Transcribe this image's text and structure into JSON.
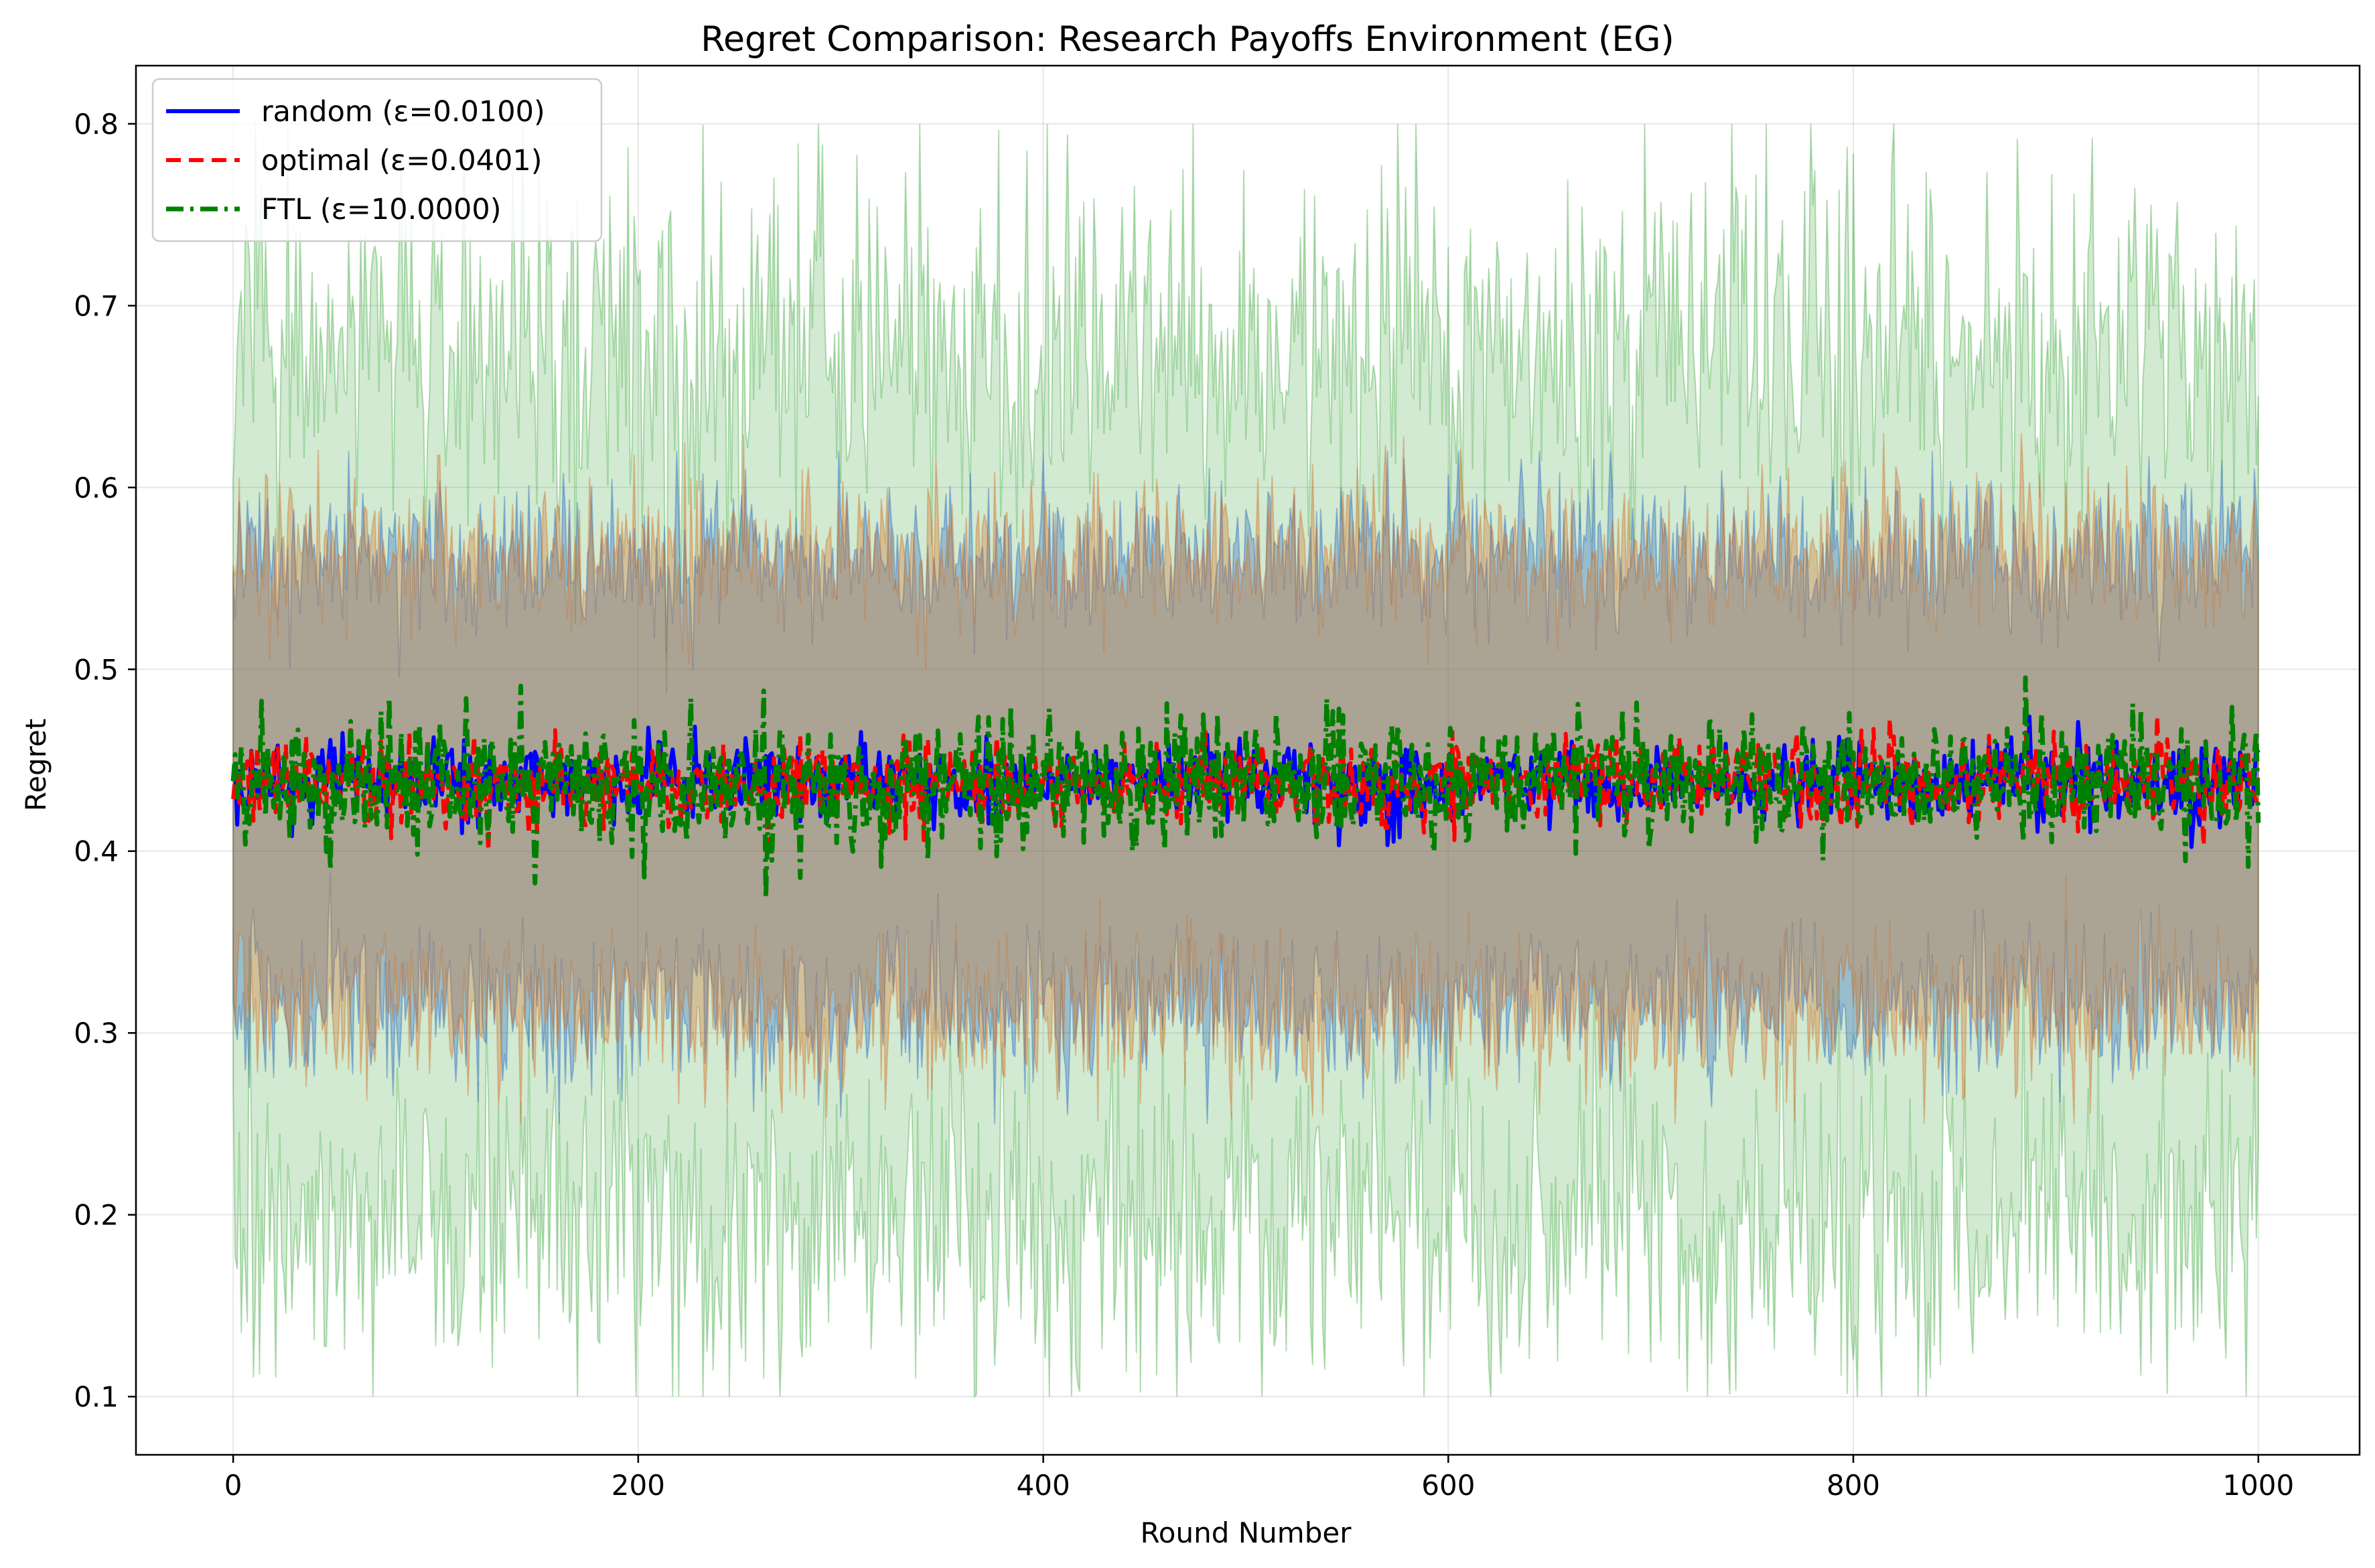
{
  "chart_data": {
    "type": "line",
    "title": "Regret Comparison: Research Payoffs Environment (EG)",
    "xlabel": "Round Number",
    "ylabel": "Regret",
    "xlim": [
      -48,
      1050
    ],
    "ylim": [
      0.068,
      0.832
    ],
    "xticks": [
      0,
      200,
      400,
      600,
      800,
      1000
    ],
    "yticks": [
      0.1,
      0.2,
      0.3,
      0.4,
      0.5,
      0.6,
      0.7,
      0.8
    ],
    "grid": true,
    "legend_position": "top-left",
    "n_rounds": 1000,
    "series": [
      {
        "name": "random (ε=0.0100)",
        "color": "#0000ff",
        "band_color": "#1f5fbf",
        "line_style": "solid",
        "mean_level": 0.438,
        "mean_noise": 0.011,
        "band_halfwidth": 0.125,
        "band_noise": 0.022,
        "band_range": [
          0.25,
          0.62
        ]
      },
      {
        "name": "optimal (ε=0.0401)",
        "color": "#ff0000",
        "band_color": "#d2691e",
        "line_style": "dashed",
        "mean_level": 0.437,
        "mean_noise": 0.012,
        "band_halfwidth": 0.127,
        "band_noise": 0.022,
        "band_range": [
          0.25,
          0.63
        ]
      },
      {
        "name": "FTL (ε=10.0000)",
        "color": "#008000",
        "band_color": "#2ca02c",
        "line_style": "dashdot",
        "mean_level": 0.437,
        "mean_noise": 0.018,
        "band_halfwidth": 0.24,
        "band_noise": 0.05,
        "band_range": [
          0.1,
          0.8
        ]
      }
    ]
  }
}
